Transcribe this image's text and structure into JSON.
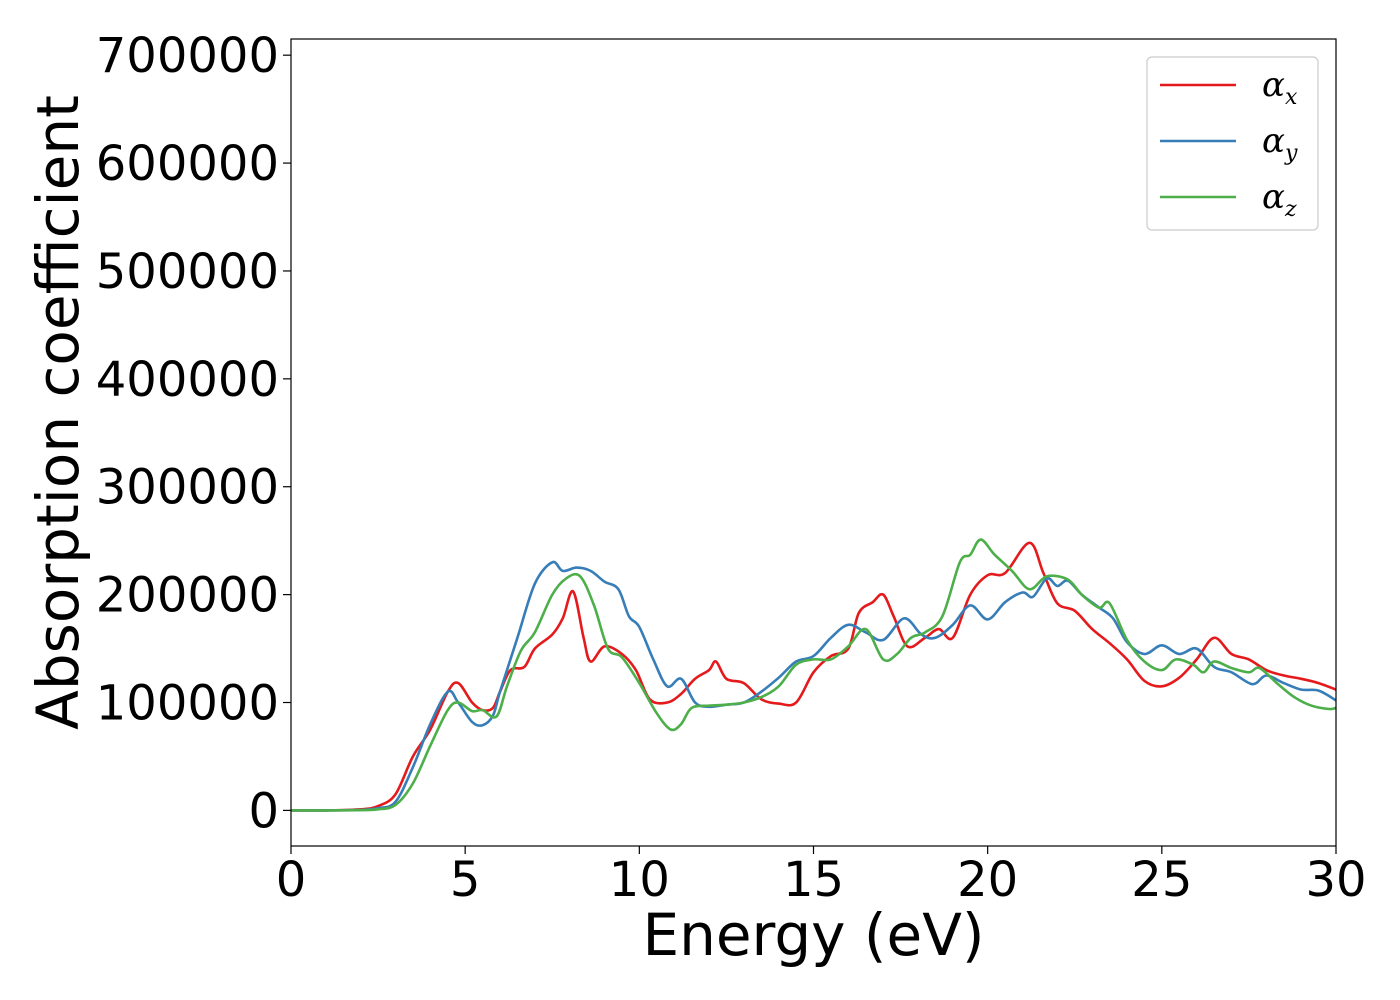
{
  "chart_data": {
    "type": "line",
    "xlabel": "Energy (eV)",
    "ylabel": "Absorption coefficient",
    "xlim": [
      0,
      30
    ],
    "ylim": [
      -33000,
      715000
    ],
    "xticks": [
      0,
      5,
      10,
      15,
      20,
      25,
      30
    ],
    "yticks": [
      0,
      100000,
      200000,
      300000,
      400000,
      500000,
      600000,
      700000
    ],
    "grid": false,
    "legend_position": "top-right",
    "series": [
      {
        "name": "α_x",
        "symbol": "α",
        "subscript": "x",
        "color": "#e41a1c",
        "points": [
          [
            0,
            0
          ],
          [
            1,
            0
          ],
          [
            2,
            1000
          ],
          [
            2.5,
            4000
          ],
          [
            3,
            15000
          ],
          [
            3.5,
            50000
          ],
          [
            4,
            75000
          ],
          [
            4.5,
            110000
          ],
          [
            4.8,
            118000
          ],
          [
            5.2,
            100000
          ],
          [
            5.5,
            93000
          ],
          [
            5.8,
            95000
          ],
          [
            6,
            110000
          ],
          [
            6.3,
            130000
          ],
          [
            6.7,
            133000
          ],
          [
            7,
            150000
          ],
          [
            7.5,
            163000
          ],
          [
            7.8,
            178000
          ],
          [
            8.1,
            203000
          ],
          [
            8.4,
            160000
          ],
          [
            8.6,
            138000
          ],
          [
            9,
            152000
          ],
          [
            9.5,
            145000
          ],
          [
            9.9,
            130000
          ],
          [
            10.3,
            103000
          ],
          [
            10.8,
            100000
          ],
          [
            11.2,
            108000
          ],
          [
            11.6,
            122000
          ],
          [
            12,
            130000
          ],
          [
            12.2,
            138000
          ],
          [
            12.5,
            122000
          ],
          [
            13,
            118000
          ],
          [
            13.5,
            103000
          ],
          [
            14,
            99000
          ],
          [
            14.5,
            100000
          ],
          [
            15,
            128000
          ],
          [
            15.5,
            143000
          ],
          [
            16,
            150000
          ],
          [
            16.3,
            183000
          ],
          [
            16.7,
            193000
          ],
          [
            17,
            200000
          ],
          [
            17.3,
            180000
          ],
          [
            17.7,
            152000
          ],
          [
            18.2,
            160000
          ],
          [
            18.6,
            168000
          ],
          [
            19,
            160000
          ],
          [
            19.5,
            200000
          ],
          [
            20,
            218000
          ],
          [
            20.5,
            220000
          ],
          [
            21.2,
            248000
          ],
          [
            21.6,
            220000
          ],
          [
            22,
            192000
          ],
          [
            22.5,
            185000
          ],
          [
            23,
            168000
          ],
          [
            23.5,
            155000
          ],
          [
            24,
            140000
          ],
          [
            24.5,
            120000
          ],
          [
            25,
            115000
          ],
          [
            25.5,
            123000
          ],
          [
            26,
            140000
          ],
          [
            26.5,
            160000
          ],
          [
            27,
            145000
          ],
          [
            27.5,
            140000
          ],
          [
            28,
            130000
          ],
          [
            28.5,
            125000
          ],
          [
            29,
            122000
          ],
          [
            29.5,
            118000
          ],
          [
            30,
            112000
          ]
        ]
      },
      {
        "name": "α_y",
        "symbol": "α",
        "subscript": "y",
        "color": "#377eb8",
        "points": [
          [
            0,
            0
          ],
          [
            1,
            0
          ],
          [
            2,
            500
          ],
          [
            2.5,
            2000
          ],
          [
            3,
            8000
          ],
          [
            3.5,
            40000
          ],
          [
            4,
            80000
          ],
          [
            4.5,
            110000
          ],
          [
            4.8,
            100000
          ],
          [
            5.2,
            82000
          ],
          [
            5.5,
            79000
          ],
          [
            5.8,
            88000
          ],
          [
            6,
            110000
          ],
          [
            6.5,
            160000
          ],
          [
            7,
            210000
          ],
          [
            7.5,
            230000
          ],
          [
            7.8,
            222000
          ],
          [
            8.2,
            225000
          ],
          [
            8.6,
            222000
          ],
          [
            9,
            212000
          ],
          [
            9.4,
            205000
          ],
          [
            9.7,
            180000
          ],
          [
            10,
            170000
          ],
          [
            10.4,
            140000
          ],
          [
            10.8,
            115000
          ],
          [
            11.2,
            122000
          ],
          [
            11.6,
            100000
          ],
          [
            12,
            96000
          ],
          [
            12.5,
            98000
          ],
          [
            13,
            100000
          ],
          [
            13.5,
            110000
          ],
          [
            14,
            123000
          ],
          [
            14.5,
            138000
          ],
          [
            15,
            143000
          ],
          [
            15.5,
            160000
          ],
          [
            16,
            172000
          ],
          [
            16.5,
            165000
          ],
          [
            17,
            158000
          ],
          [
            17.6,
            178000
          ],
          [
            18.1,
            163000
          ],
          [
            18.5,
            160000
          ],
          [
            19,
            172000
          ],
          [
            19.5,
            190000
          ],
          [
            20,
            177000
          ],
          [
            20.5,
            193000
          ],
          [
            21,
            202000
          ],
          [
            21.3,
            198000
          ],
          [
            21.7,
            215000
          ],
          [
            22,
            208000
          ],
          [
            22.3,
            213000
          ],
          [
            22.7,
            200000
          ],
          [
            23.2,
            188000
          ],
          [
            23.6,
            178000
          ],
          [
            24,
            156000
          ],
          [
            24.5,
            145000
          ],
          [
            25,
            153000
          ],
          [
            25.5,
            145000
          ],
          [
            26,
            150000
          ],
          [
            26.5,
            133000
          ],
          [
            27,
            128000
          ],
          [
            27.6,
            117000
          ],
          [
            28,
            125000
          ],
          [
            28.5,
            118000
          ],
          [
            29,
            112000
          ],
          [
            29.5,
            111000
          ],
          [
            30,
            102000
          ]
        ]
      },
      {
        "name": "α_z",
        "symbol": "α",
        "subscript": "z",
        "color": "#4daf4a",
        "points": [
          [
            0,
            0
          ],
          [
            1,
            0
          ],
          [
            2,
            300
          ],
          [
            2.5,
            1000
          ],
          [
            3,
            5000
          ],
          [
            3.5,
            25000
          ],
          [
            4,
            60000
          ],
          [
            4.5,
            93000
          ],
          [
            4.8,
            100000
          ],
          [
            5.2,
            92000
          ],
          [
            5.5,
            93000
          ],
          [
            5.9,
            87000
          ],
          [
            6.2,
            115000
          ],
          [
            6.6,
            148000
          ],
          [
            7,
            165000
          ],
          [
            7.5,
            200000
          ],
          [
            7.9,
            215000
          ],
          [
            8.3,
            217000
          ],
          [
            8.7,
            190000
          ],
          [
            9.1,
            150000
          ],
          [
            9.5,
            142000
          ],
          [
            10,
            118000
          ],
          [
            10.5,
            90000
          ],
          [
            10.9,
            75000
          ],
          [
            11.2,
            80000
          ],
          [
            11.5,
            95000
          ],
          [
            12,
            97000
          ],
          [
            12.5,
            98000
          ],
          [
            13,
            100000
          ],
          [
            13.5,
            105000
          ],
          [
            14,
            115000
          ],
          [
            14.5,
            135000
          ],
          [
            15,
            140000
          ],
          [
            15.5,
            140000
          ],
          [
            16,
            152000
          ],
          [
            16.5,
            168000
          ],
          [
            17,
            140000
          ],
          [
            17.4,
            145000
          ],
          [
            17.8,
            160000
          ],
          [
            18.2,
            165000
          ],
          [
            18.7,
            180000
          ],
          [
            19.2,
            230000
          ],
          [
            19.5,
            237000
          ],
          [
            19.8,
            251000
          ],
          [
            20.2,
            237000
          ],
          [
            20.7,
            222000
          ],
          [
            21.2,
            205000
          ],
          [
            21.7,
            217000
          ],
          [
            22.3,
            214000
          ],
          [
            22.7,
            200000
          ],
          [
            23.2,
            188000
          ],
          [
            23.5,
            192000
          ],
          [
            24,
            158000
          ],
          [
            24.5,
            138000
          ],
          [
            25,
            130000
          ],
          [
            25.4,
            140000
          ],
          [
            25.9,
            135000
          ],
          [
            26.2,
            128000
          ],
          [
            26.5,
            138000
          ],
          [
            27,
            132000
          ],
          [
            27.5,
            128000
          ],
          [
            27.8,
            132000
          ],
          [
            28.3,
            118000
          ],
          [
            28.8,
            105000
          ],
          [
            29.3,
            97000
          ],
          [
            29.8,
            94000
          ],
          [
            30,
            95000
          ]
        ]
      }
    ]
  }
}
